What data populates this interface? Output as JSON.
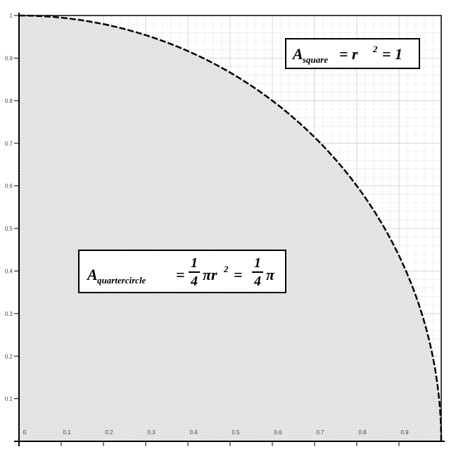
{
  "chart_data": {
    "type": "quarter-circle",
    "radius": 1,
    "xlim": [
      0,
      1
    ],
    "ylim": [
      0,
      1
    ],
    "xticks": [
      0,
      0.1,
      0.2,
      0.3,
      0.4,
      0.5,
      0.6,
      0.7,
      0.8,
      0.9
    ],
    "yticks": [
      0.1,
      0.2,
      0.3,
      0.4,
      0.5,
      0.6,
      0.7,
      0.8,
      0.9,
      1
    ],
    "grid": true,
    "annotations": [
      {
        "symbol": "A",
        "subscript": "square",
        "equation": "= r",
        "exponent": "2",
        "result": "= 1"
      },
      {
        "symbol": "A",
        "subscript": "quartercircle",
        "equals": "=",
        "numerator": "1",
        "denominator": "4",
        "expression": "πr",
        "exponent": "2",
        "equals2": "=",
        "numerator2": "1",
        "denominator2": "4",
        "tail": "π"
      }
    ]
  }
}
